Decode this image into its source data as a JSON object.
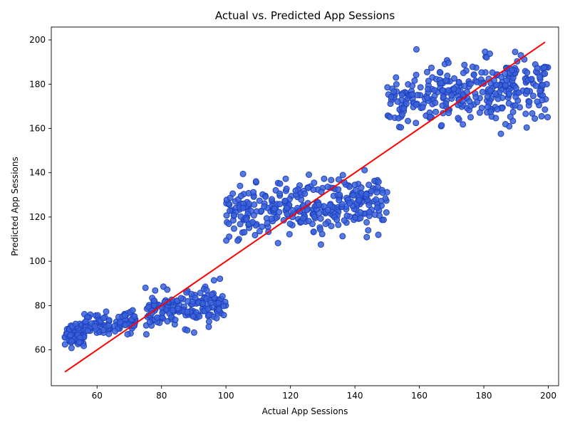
{
  "chart_data": {
    "type": "scatter",
    "title": "Actual vs. Predicted App Sessions",
    "xlabel": "Actual App Sessions",
    "ylabel": "Predicted App Sessions",
    "xlim": [
      45.8,
      203.2
    ],
    "ylim": [
      43.8,
      205.8
    ],
    "xticks": [
      60,
      80,
      100,
      120,
      140,
      160,
      180,
      200
    ],
    "yticks": [
      60,
      80,
      100,
      120,
      140,
      160,
      180,
      200
    ],
    "grid": false,
    "legend": "none",
    "point_color": "#3a63d8",
    "point_edge_color": "#1f3fbf",
    "line_color": "#ff0000",
    "reference_line": {
      "x": [
        50,
        199
      ],
      "y": [
        50,
        199
      ]
    },
    "clusters": [
      {
        "x_range": [
          50,
          56
        ],
        "y_mean": 67,
        "y_spread": 5,
        "count": 80
      },
      {
        "x_range": [
          56,
          72
        ],
        "y_mean": 72,
        "y_spread": 5,
        "count": 90
      },
      {
        "x_range": [
          75,
          100
        ],
        "y_mean": 79,
        "y_spread": 8,
        "count": 170
      },
      {
        "x_range": [
          100,
          150
        ],
        "y_mean": 124,
        "y_spread": 12,
        "count": 340
      },
      {
        "x_range": [
          150,
          200
        ],
        "y_mean": 176,
        "y_spread": 14,
        "count": 340
      }
    ]
  }
}
